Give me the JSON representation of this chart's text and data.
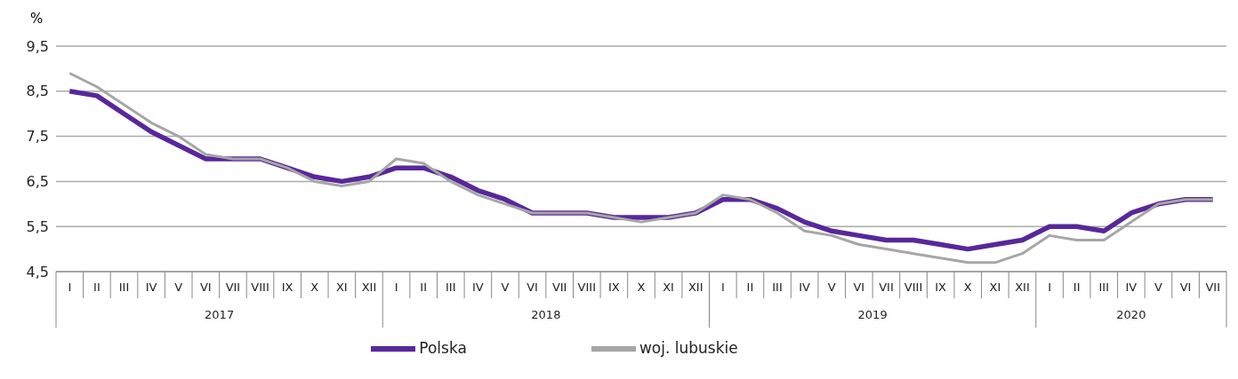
{
  "chart_data": {
    "type": "line",
    "ylabel": "%",
    "categories": [
      "I",
      "II",
      "III",
      "IV",
      "V",
      "VI",
      "VII",
      "VIII",
      "IX",
      "X",
      "XI",
      "XII",
      "I",
      "II",
      "III",
      "IV",
      "V",
      "VI",
      "VII",
      "VIII",
      "IX",
      "X",
      "XI",
      "XII",
      "I",
      "II",
      "III",
      "IV",
      "V",
      "VI",
      "VII",
      "VIII",
      "IX",
      "X",
      "XI",
      "XII",
      "I",
      "II",
      "III",
      "IV",
      "V",
      "VI",
      "VII"
    ],
    "annotations": [
      "2017",
      "2018",
      "2019",
      "2020"
    ],
    "series": [
      {
        "name": "Polska",
        "color": "#58279b",
        "values": [
          8.5,
          8.4,
          8.0,
          7.6,
          7.3,
          7.0,
          7.0,
          7.0,
          6.8,
          6.6,
          6.5,
          6.6,
          6.8,
          6.8,
          6.6,
          6.3,
          6.1,
          5.8,
          5.8,
          5.8,
          5.7,
          5.7,
          5.7,
          5.8,
          6.1,
          6.1,
          5.9,
          5.6,
          5.4,
          5.3,
          5.2,
          5.2,
          5.1,
          5.0,
          5.1,
          5.2,
          5.5,
          5.5,
          5.4,
          5.8,
          6.0,
          6.1,
          6.1
        ]
      },
      {
        "name": "woj. lubuskie",
        "color": "#a6a6a6",
        "values": [
          8.9,
          8.6,
          8.2,
          7.8,
          7.5,
          7.1,
          7.0,
          7.0,
          6.8,
          6.5,
          6.4,
          6.5,
          7.0,
          6.9,
          6.5,
          6.2,
          6.0,
          5.8,
          5.8,
          5.8,
          5.7,
          5.6,
          5.7,
          5.8,
          6.2,
          6.1,
          5.8,
          5.4,
          5.3,
          5.1,
          5.0,
          4.9,
          4.8,
          4.7,
          4.7,
          4.9,
          5.3,
          5.2,
          5.2,
          5.6,
          6.0,
          6.1,
          6.1
        ]
      }
    ],
    "ylim": [
      4.5,
      9.5
    ],
    "yticks": [
      {
        "value": 4.5,
        "label": "4,5"
      },
      {
        "value": 5.5,
        "label": "5,5"
      },
      {
        "value": 6.5,
        "label": "6,5"
      },
      {
        "value": 7.5,
        "label": "7,5"
      },
      {
        "value": 8.5,
        "label": "8,5"
      },
      {
        "value": 9.5,
        "label": "9,5"
      }
    ],
    "grid": "y",
    "legend": "bottom",
    "marker": "none",
    "line_style": "solid"
  }
}
